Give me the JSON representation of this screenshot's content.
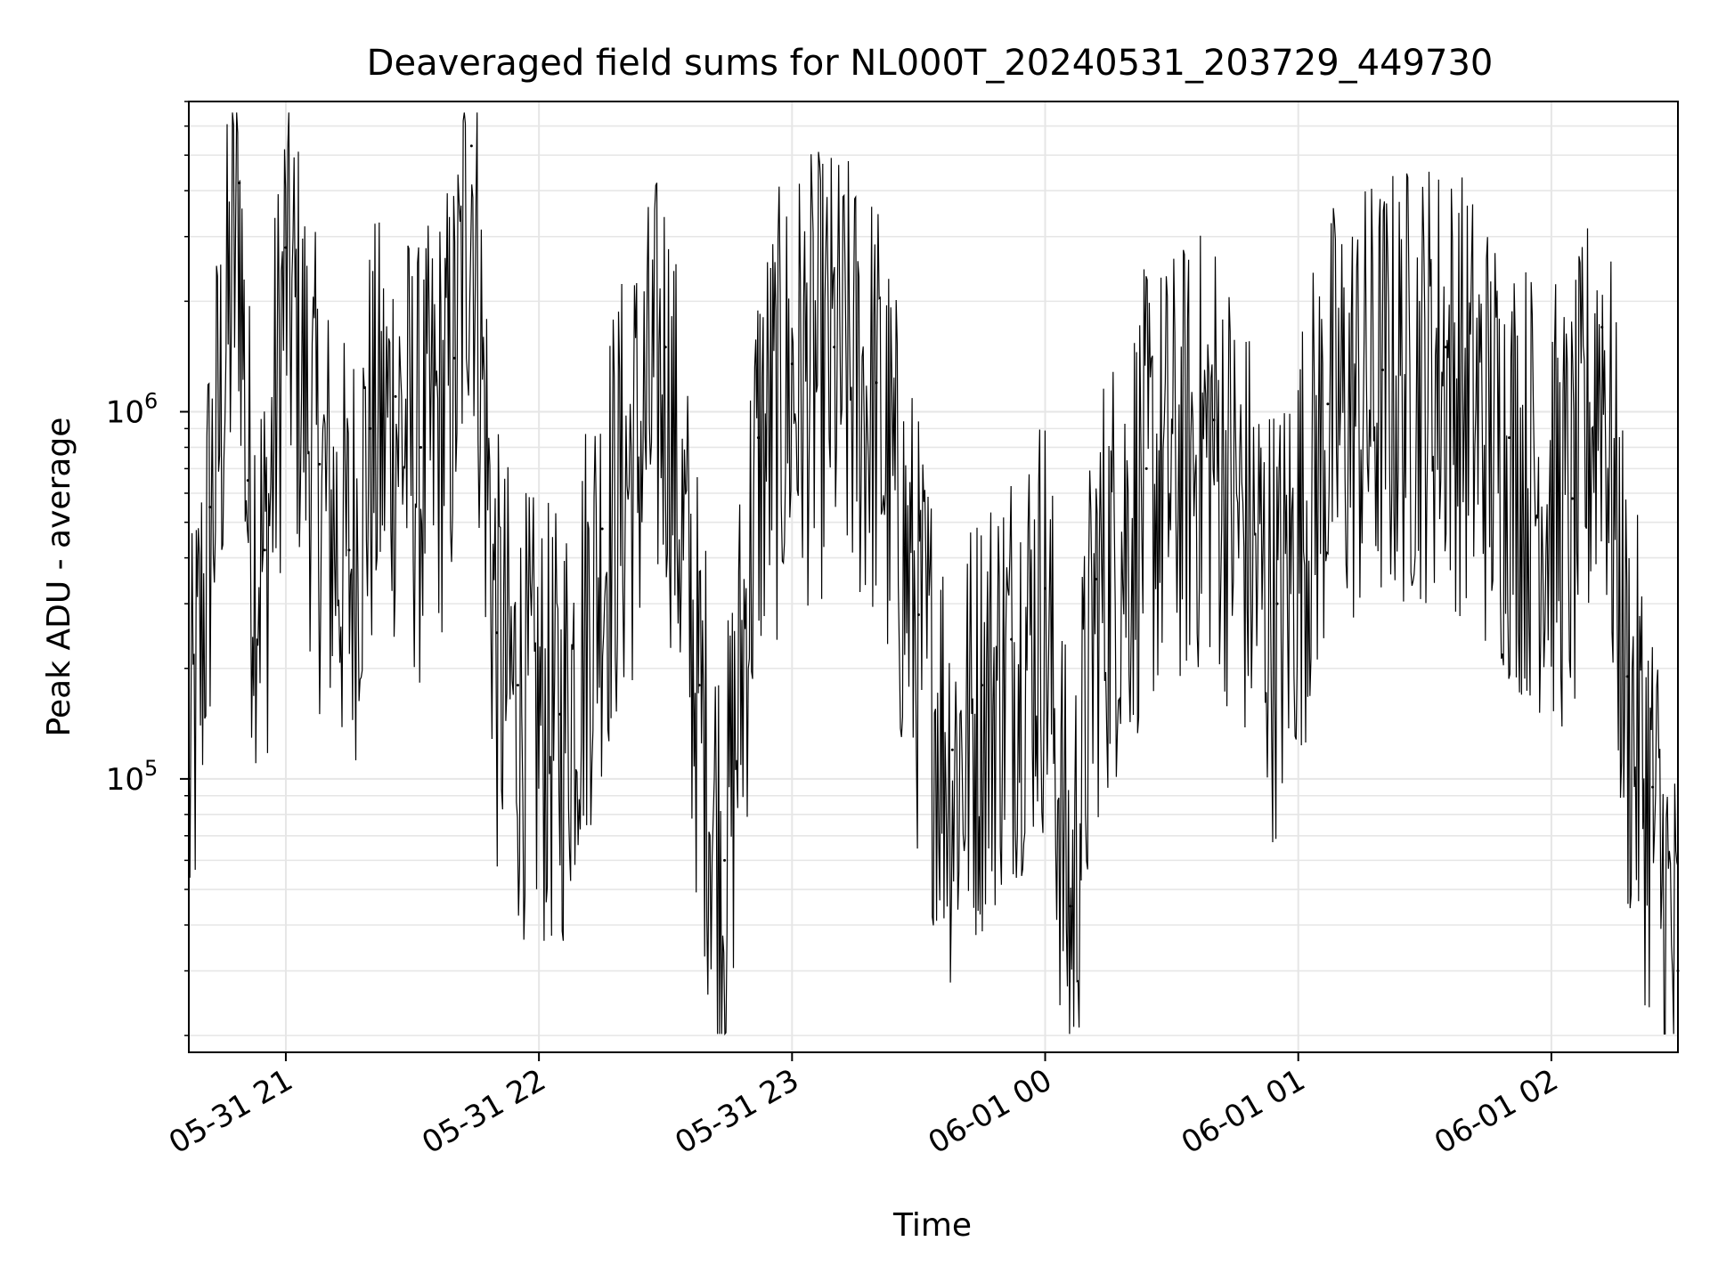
{
  "chart_data": {
    "type": "line",
    "title": "Deaveraged field sums for NL000T_20240531_203729_449730",
    "xlabel": "Time",
    "ylabel": "Peak ADU - average",
    "xlim": [
      "2024-05-31 20:37",
      "2024-06-01 02:30"
    ],
    "ylim": [
      18000,
      7000000
    ],
    "yscale": "log",
    "grid": true,
    "x_ticks": [
      {
        "value": "2024-05-31 21:00",
        "label": "05-31 21"
      },
      {
        "value": "2024-05-31 22:00",
        "label": "05-31 22"
      },
      {
        "value": "2024-05-31 23:00",
        "label": "05-31 23"
      },
      {
        "value": "2024-06-01 00:00",
        "label": "06-01 00"
      },
      {
        "value": "2024-06-01 01:00",
        "label": "06-01 01"
      },
      {
        "value": "2024-06-01 02:00",
        "label": "06-01 02"
      }
    ],
    "y_ticks": [
      {
        "value": 100000,
        "base": "10",
        "exp": "5"
      },
      {
        "value": 1000000,
        "base": "10",
        "exp": "6"
      }
    ],
    "line_color": "#000000",
    "series": [
      {
        "x": [
          "2024-05-31 20:37",
          "2024-05-31 20:42",
          "2024-05-31 20:49",
          "2024-05-31 20:51",
          "2024-05-31 20:55",
          "2024-05-31 21:00",
          "2024-05-31 21:08",
          "2024-05-31 21:15",
          "2024-05-31 21:20",
          "2024-05-31 21:26",
          "2024-05-31 21:32",
          "2024-05-31 21:40",
          "2024-05-31 21:44",
          "2024-05-31 21:50",
          "2024-05-31 21:55",
          "2024-05-31 22:05",
          "2024-05-31 22:15",
          "2024-05-31 22:30",
          "2024-05-31 22:38",
          "2024-05-31 22:44",
          "2024-05-31 22:52",
          "2024-05-31 23:00",
          "2024-05-31 23:10",
          "2024-05-31 23:20",
          "2024-05-31 23:30",
          "2024-05-31 23:38",
          "2024-05-31 23:45",
          "2024-05-31 23:52",
          "2024-06-01 00:00",
          "2024-06-01 00:06",
          "2024-06-01 00:12",
          "2024-06-01 00:24",
          "2024-06-01 00:40",
          "2024-06-01 00:55",
          "2024-06-01 01:07",
          "2024-06-01 01:20",
          "2024-06-01 01:35",
          "2024-06-01 01:50",
          "2024-06-01 02:05",
          "2024-06-01 02:12",
          "2024-06-01 02:18",
          "2024-06-01 02:24",
          "2024-06-01 02:30"
        ],
        "y": [
          100000,
          550000,
          4200000,
          650000,
          420000,
          2800000,
          720000,
          420000,
          900000,
          1100000,
          800000,
          1400000,
          5300000,
          250000,
          180000,
          150000,
          480000,
          1500000,
          180000,
          60000,
          850000,
          1350000,
          1500000,
          1200000,
          280000,
          120000,
          180000,
          240000,
          330000,
          45000,
          350000,
          700000,
          950000,
          300000,
          1050000,
          1300000,
          1500000,
          850000,
          580000,
          1700000,
          190000,
          95000,
          30000
        ]
      }
    ]
  }
}
